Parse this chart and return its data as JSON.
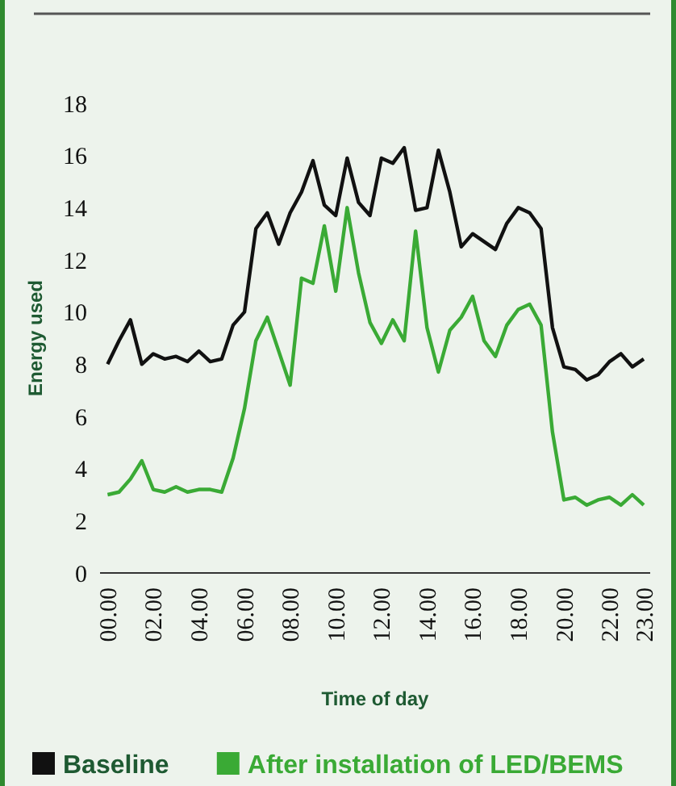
{
  "chart_data": {
    "type": "line",
    "xlabel": "Time of day",
    "ylabel": "Energy used",
    "categories": [
      "00.00",
      null,
      null,
      null,
      "02.00",
      null,
      null,
      null,
      "04.00",
      null,
      null,
      null,
      "06.00",
      null,
      null,
      null,
      "08.00",
      null,
      null,
      null,
      "10.00",
      null,
      null,
      null,
      "12.00",
      null,
      null,
      null,
      "14.00",
      null,
      null,
      null,
      "16.00",
      null,
      null,
      null,
      "18.00",
      null,
      null,
      null,
      "20.00",
      null,
      null,
      null,
      "22.00",
      null,
      null,
      "23.00"
    ],
    "series": [
      {
        "name": "Baseline",
        "color": "#111111",
        "values": [
          8.0,
          8.9,
          9.7,
          8.0,
          8.4,
          8.2,
          8.3,
          8.1,
          8.5,
          8.1,
          8.2,
          9.5,
          10.0,
          13.2,
          13.8,
          12.6,
          13.8,
          14.6,
          15.8,
          14.1,
          13.7,
          15.9,
          14.2,
          13.7,
          15.9,
          15.7,
          16.3,
          13.9,
          14.0,
          16.2,
          14.6,
          12.5,
          13.0,
          12.7,
          12.4,
          13.4,
          14.0,
          13.8,
          13.2,
          9.4,
          7.9,
          7.8,
          7.4,
          7.6,
          8.1,
          8.4,
          7.9,
          8.2
        ]
      },
      {
        "name": "After installation of LED/BEMS",
        "color": "#3aaa35",
        "values": [
          3.0,
          3.1,
          3.6,
          4.3,
          3.2,
          3.1,
          3.3,
          3.1,
          3.2,
          3.2,
          3.1,
          4.4,
          6.3,
          8.9,
          9.8,
          8.5,
          7.2,
          11.3,
          11.1,
          13.3,
          10.8,
          14.0,
          11.5,
          9.6,
          8.8,
          9.7,
          8.9,
          13.1,
          9.4,
          7.7,
          9.3,
          9.8,
          10.6,
          8.9,
          8.3,
          9.5,
          10.1,
          10.3,
          9.5,
          5.4,
          2.8,
          2.9,
          2.6,
          2.8,
          2.9,
          2.6,
          3.0,
          2.6
        ]
      }
    ],
    "ylim": [
      0,
      18
    ],
    "yticks": [
      0,
      2,
      4,
      6,
      8,
      10,
      12,
      14,
      16,
      18
    ],
    "grid": false,
    "legend": "bottom",
    "marker": "none",
    "line_style": "solid"
  }
}
